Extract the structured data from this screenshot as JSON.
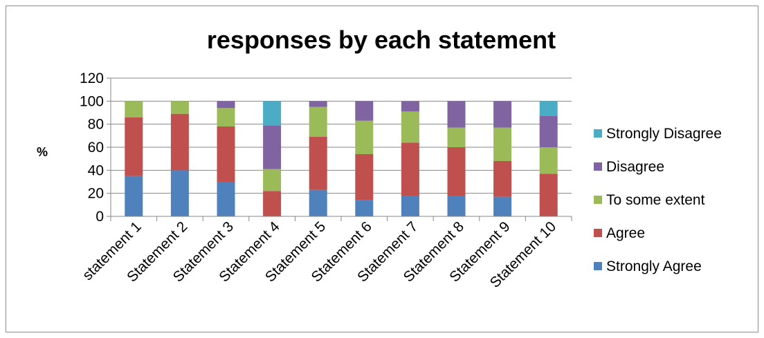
{
  "chart_data": {
    "type": "bar",
    "stacked": true,
    "title": "responses by each statement",
    "xlabel": "",
    "ylabel": "%",
    "ylim": [
      0,
      120
    ],
    "yticks": [
      0,
      20,
      40,
      60,
      80,
      100,
      120
    ],
    "grid": true,
    "legend_position": "right",
    "categories": [
      "statement 1",
      "Statement 2",
      "Statement 3",
      "Statement 4",
      "Statement 5",
      "Statement 6",
      "Statement 7",
      "Statement 8",
      "Statement 9",
      "Statement 10"
    ],
    "series": [
      {
        "name": "Strongly Agree",
        "color": "#4f81bd",
        "values": [
          35,
          40,
          30,
          0,
          23,
          14,
          18,
          18,
          17,
          0
        ]
      },
      {
        "name": "Agree",
        "color": "#c0504d",
        "values": [
          51,
          49,
          48,
          22,
          46,
          40,
          46,
          42,
          31,
          37
        ]
      },
      {
        "name": "To some extent",
        "color": "#9bbb59",
        "values": [
          14,
          11,
          16,
          19,
          26,
          29,
          27,
          17,
          29,
          23
        ]
      },
      {
        "name": "Disagree",
        "color": "#8064a2",
        "values": [
          0,
          0,
          6,
          38,
          5,
          17,
          9,
          23,
          23,
          27
        ]
      },
      {
        "name": "Strongly Disagree",
        "color": "#4bacc6",
        "values": [
          0,
          0,
          0,
          21,
          0,
          0,
          0,
          0,
          0,
          13
        ]
      }
    ]
  }
}
